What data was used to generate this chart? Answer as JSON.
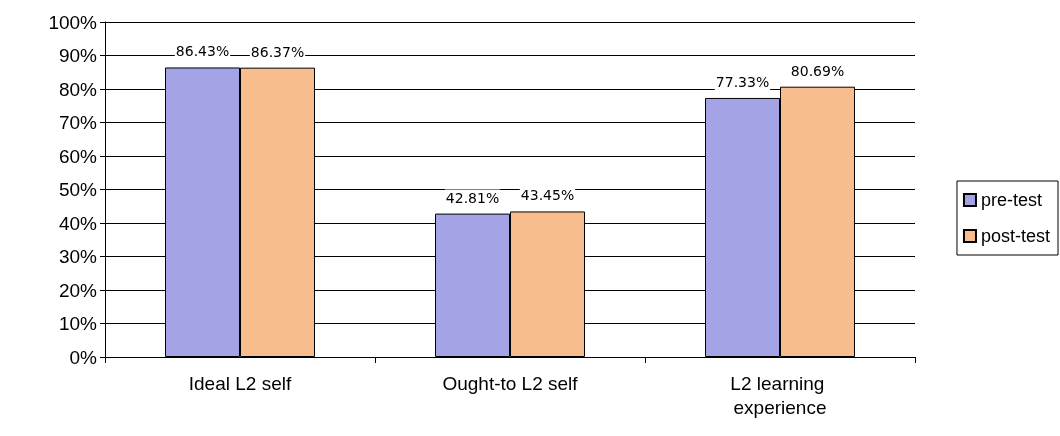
{
  "chart_data": {
    "type": "bar",
    "categories": [
      "Ideal L2 self",
      "Ought-to L2 self",
      "L2 learning experience"
    ],
    "series": [
      {
        "name": "pre-test",
        "color": "#a3a3e6",
        "values": [
          86.43,
          42.81,
          77.33
        ],
        "value_labels": [
          "86.43%",
          "42.81%",
          "77.33%"
        ]
      },
      {
        "name": "post-test",
        "color": "#f7bd8c",
        "values": [
          86.37,
          43.45,
          80.69
        ],
        "value_labels": [
          "86.37%",
          "43.45%",
          "80.69%"
        ]
      }
    ],
    "ylim": [
      0,
      100
    ],
    "yticks": [
      {
        "value": 0,
        "label": "0%"
      },
      {
        "value": 10,
        "label": "10%"
      },
      {
        "value": 20,
        "label": "20%"
      },
      {
        "value": 30,
        "label": "30%"
      },
      {
        "value": 40,
        "label": "40%"
      },
      {
        "value": 50,
        "label": "50%"
      },
      {
        "value": 60,
        "label": "60%"
      },
      {
        "value": 70,
        "label": "70%"
      },
      {
        "value": 80,
        "label": "80%"
      },
      {
        "value": 90,
        "label": "90%"
      },
      {
        "value": 100,
        "label": "100%"
      }
    ],
    "grid": "y",
    "legend": "right"
  }
}
